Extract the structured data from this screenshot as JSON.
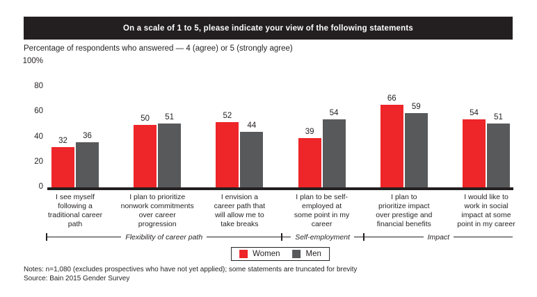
{
  "subtitle": "Percentage of respondents who answered — 4 (agree) or 5 (strongly agree)",
  "notes": "Notes: n=1,080 (excludes prospectives who have not yet applied); some statements are truncated for brevity",
  "source": "Source: Bain 2015 Gender Survey",
  "colors": {
    "women": "#ee2529",
    "men": "#58595b",
    "banner_bg": "#231f20",
    "ink": "#231f20"
  },
  "chart_data": {
    "type": "bar",
    "title": "On a scale of 1 to 5, please indicate your view of the following statements",
    "ylabel": "Percentage of respondents who answered — 4 (agree) or 5 (strongly agree)",
    "xlabel": "",
    "ylim": [
      0,
      100
    ],
    "grid": false,
    "legend_position": "bottom",
    "y_tick_values": [
      0,
      20,
      40,
      60,
      80,
      100
    ],
    "y_tick_labels": [
      "0",
      "20",
      "40",
      "60",
      "80",
      "100%"
    ],
    "categories": [
      "I see myself following a traditional career path",
      "I plan to prioritize nonwork commitments over career progression",
      "I envision a career path that will allow me to take breaks",
      "I plan to be self-employed at some point in my career",
      "I plan to prioritize impact over prestige and financial benefits",
      "I would like to work in social impact at some point in my career"
    ],
    "category_lines": [
      [
        "I see myself",
        "following a",
        "traditional career",
        "path"
      ],
      [
        "I plan to prioritize",
        "nonwork commitments",
        "over career",
        "progression"
      ],
      [
        "I envision a",
        "career path that",
        "will allow me to",
        "take breaks"
      ],
      [
        "I plan to be self-",
        "employed at",
        "some point in my",
        "career"
      ],
      [
        "I plan to",
        "prioritize impact",
        "over prestige and",
        "financial benefits"
      ],
      [
        "I would like to",
        "work in social",
        "impact at some",
        "point in my career"
      ]
    ],
    "series": [
      {
        "name": "Women",
        "color": "#ee2529",
        "values": [
          32,
          50,
          52,
          39,
          66,
          54
        ]
      },
      {
        "name": "Men",
        "color": "#58595b",
        "values": [
          36,
          51,
          44,
          54,
          59,
          51
        ]
      }
    ],
    "group_brackets": [
      {
        "label": "Flexibility of career path",
        "groups": [
          0,
          2
        ]
      },
      {
        "label": "Self-employment",
        "groups": [
          3,
          3
        ]
      },
      {
        "label": "Impact",
        "groups": [
          4,
          5
        ]
      }
    ]
  }
}
